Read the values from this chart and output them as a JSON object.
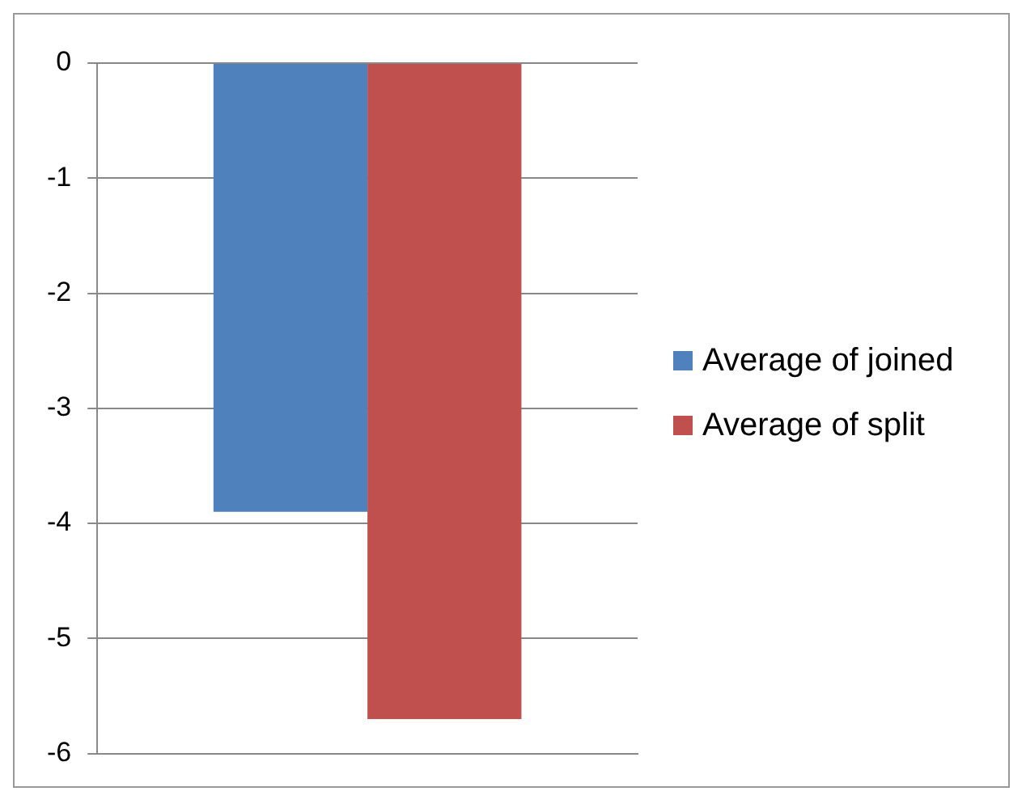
{
  "chart_data": {
    "type": "bar",
    "categories": [
      null
    ],
    "series": [
      {
        "name": "Average of joined",
        "color": "#4f81bd",
        "values": [
          -3.9
        ]
      },
      {
        "name": "Average of split",
        "color": "#c0504d",
        "values": [
          -5.7
        ]
      }
    ],
    "ylim": [
      -6,
      0
    ],
    "yticks": [
      -6,
      -5,
      -4,
      -3,
      -2,
      -1,
      0
    ],
    "grid": "y",
    "legend": "right",
    "tick_labels": "y"
  }
}
